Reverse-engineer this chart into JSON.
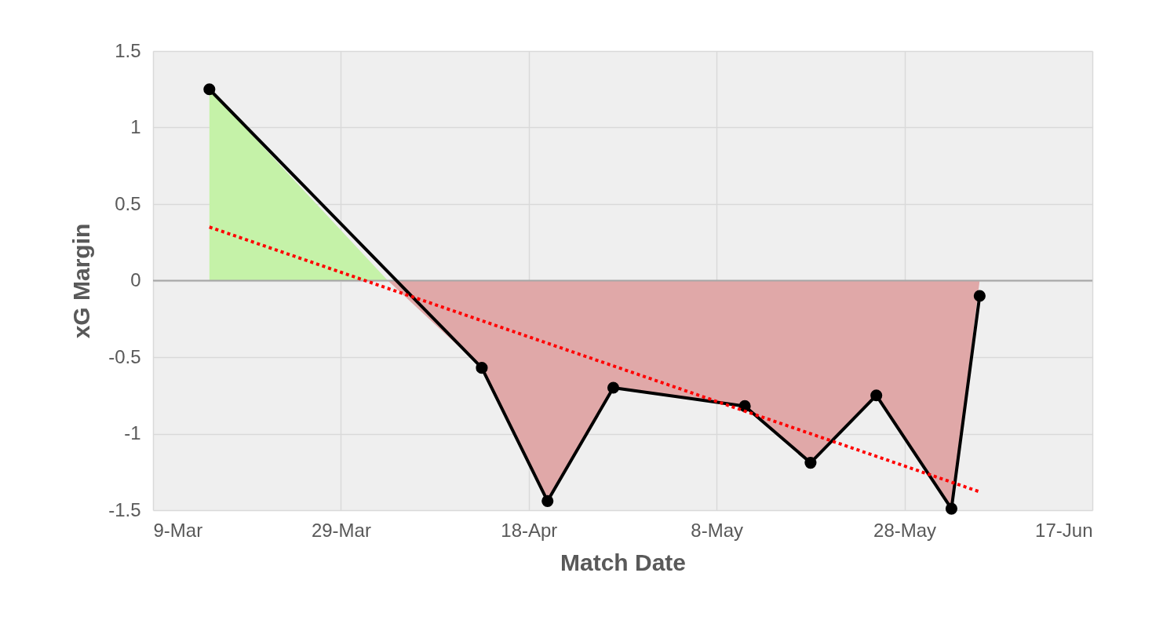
{
  "chart_data": {
    "type": "line",
    "xlabel": "Match Date",
    "ylabel": "xG Margin",
    "xlim": [
      "--03-09",
      "--06-17"
    ],
    "xticks": [
      {
        "value": "--03-09",
        "label": "9-Mar"
      },
      {
        "value": "--03-29",
        "label": "29-Mar"
      },
      {
        "value": "--04-18",
        "label": "18-Apr"
      },
      {
        "value": "--05-08",
        "label": "8-May"
      },
      {
        "value": "--05-28",
        "label": "28-May"
      },
      {
        "value": "--06-17",
        "label": "17-Jun"
      }
    ],
    "ylim": [
      -1.5,
      1.5
    ],
    "yticks": [
      -1.5,
      -1,
      -0.5,
      0,
      0.5,
      1,
      1.5
    ],
    "grid": true,
    "ref_lines": [
      {
        "axis": "y",
        "value": 0,
        "color": "#a6a6a6"
      }
    ],
    "series": [
      {
        "type": "area",
        "color": "#c5f2a8",
        "x": [
          "--03-15",
          "--04-03"
        ],
        "values": [
          1.25,
          0
        ]
      },
      {
        "type": "area",
        "color": "#e0a8a8",
        "x": [
          "--04-03",
          "--04-13",
          "--04-20",
          "--04-27",
          "--05-11",
          "--05-18",
          "--05-25",
          "--06-02",
          "--06-05"
        ],
        "values": [
          0,
          -0.57,
          -1.44,
          -0.7,
          -0.82,
          -1.19,
          -0.75,
          -1.49,
          0
        ]
      },
      {
        "color": "#000000",
        "marker": "circle",
        "line_style": "solid",
        "x": [
          "--03-15",
          "--04-13",
          "--04-20",
          "--04-27",
          "--05-11",
          "--05-18",
          "--05-25",
          "--06-02",
          "--06-05"
        ],
        "values": [
          1.25,
          -0.57,
          -1.44,
          -0.7,
          -0.82,
          -1.19,
          -0.75,
          -1.49,
          -0.1
        ]
      },
      {
        "color": "#ff0000",
        "marker": "none",
        "line_style": "dotted",
        "x": [
          "--03-15",
          "--06-05"
        ],
        "values": [
          0.35,
          -1.38
        ]
      }
    ]
  }
}
